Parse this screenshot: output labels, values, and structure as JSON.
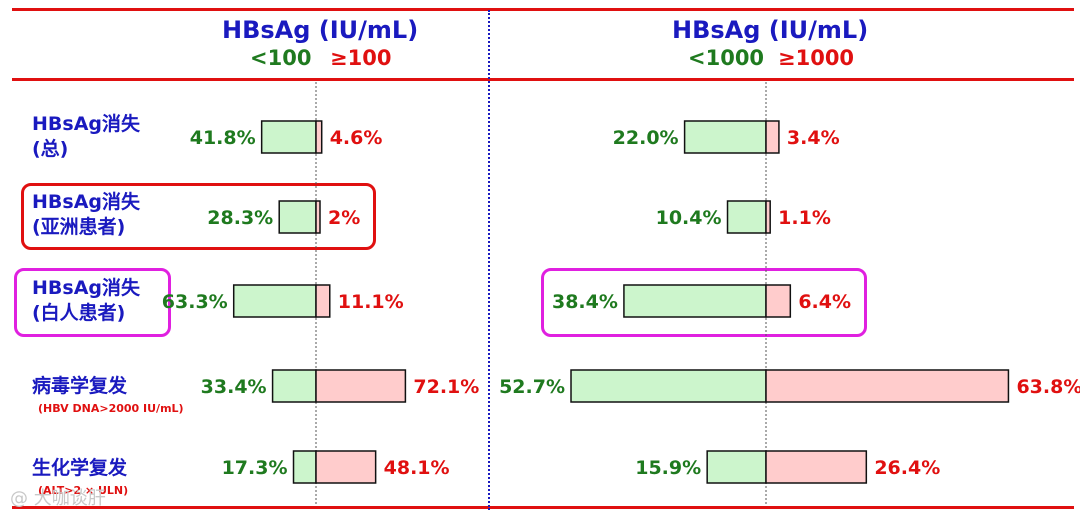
{
  "colors": {
    "low": "#ccf5cc",
    "high": "#ffcccc",
    "low_text": "#1f7a1f",
    "high_text": "#e01010",
    "label": "#1a1abf"
  },
  "panels": [
    {
      "title": "HBsAg (IU/mL)",
      "low_label": "<100",
      "high_label": "≥100"
    },
    {
      "title": "HBsAg (IU/mL)",
      "low_label": "<1000",
      "high_label": "≥1000"
    }
  ],
  "rows": [
    {
      "label_line1": "HBsAg消失",
      "label_line2": "(总)",
      "sublabel": ""
    },
    {
      "label_line1": "HBsAg消失",
      "label_line2": "(亚洲患者)",
      "sublabel": ""
    },
    {
      "label_line1": "HBsAg消失",
      "label_line2": "(白人患者)",
      "sublabel": ""
    },
    {
      "label_line1": "病毒学复发",
      "label_line2": "",
      "sublabel": "(HBV DNA>2000 IU/mL)"
    },
    {
      "label_line1": "生化学复发",
      "label_line2": "",
      "sublabel": "(ALT>2 × ULN)"
    }
  ],
  "watermark": "@ 大咖谈肝",
  "chart_data": [
    {
      "type": "bar",
      "orientation": "horizontal-diverging",
      "unit": "%",
      "title": "HBsAg (IU/mL)",
      "categories": [
        "HBsAg消失 (总)",
        "HBsAg消失 (亚洲患者)",
        "HBsAg消失 (白人患者)",
        "病毒学复发",
        "生化学复发"
      ],
      "series": [
        {
          "name": "<100",
          "values": [
            41.8,
            28.3,
            63.3,
            33.4,
            17.3
          ],
          "labels": [
            "41.8%",
            "28.3%",
            "63.3%",
            "33.4%",
            "17.3%"
          ]
        },
        {
          "name": "≥100",
          "values": [
            4.6,
            2,
            11.1,
            72.1,
            48.1
          ],
          "labels": [
            "4.6%",
            "2%",
            "11.1%",
            "72.1%",
            "48.1%"
          ]
        }
      ]
    },
    {
      "type": "bar",
      "orientation": "horizontal-diverging",
      "unit": "%",
      "title": "HBsAg (IU/mL)",
      "categories": [
        "HBsAg消失 (总)",
        "HBsAg消失 (亚洲患者)",
        "HBsAg消失 (白人患者)",
        "病毒学复发",
        "生化学复发"
      ],
      "series": [
        {
          "name": "<1000",
          "values": [
            22.0,
            10.4,
            38.4,
            52.7,
            15.9
          ],
          "labels": [
            "22.0%",
            "10.4%",
            "38.4%",
            "52.7%",
            "15.9%"
          ]
        },
        {
          "name": "≥1000",
          "values": [
            3.4,
            1.1,
            6.4,
            63.8,
            26.4
          ],
          "labels": [
            "3.4%",
            "1.1%",
            "6.4%",
            "63.8%",
            "26.4%"
          ]
        }
      ]
    }
  ]
}
